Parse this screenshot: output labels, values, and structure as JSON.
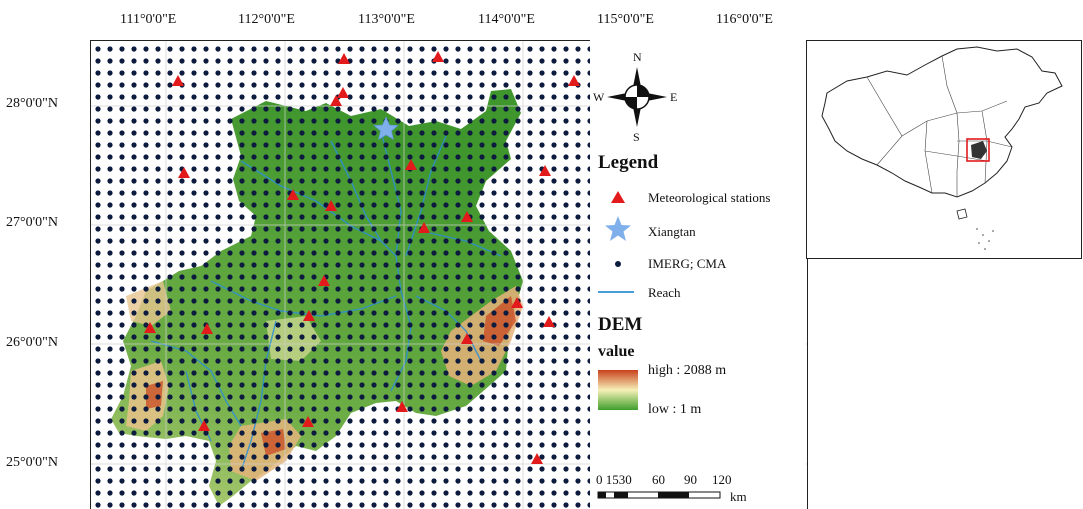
{
  "longitude_ticks": [
    "111°0'0\"E",
    "112°0'0\"E",
    "113°0'0\"E",
    "114°0'0\"E",
    "115°0'0\"E",
    "116°0'0\"E"
  ],
  "latitude_ticks": [
    "28°0'0\"N",
    "27°0'0\"N",
    "26°0'0\"N",
    "25°0'0\"N"
  ],
  "compass": {
    "n": "N",
    "s": "S",
    "e": "E",
    "w": "W"
  },
  "legend": {
    "title": "Legend",
    "items": [
      {
        "label": "Meteorological stations",
        "symbol": "red-triangle",
        "color": "#e31a1c"
      },
      {
        "label": "Xiangtan",
        "symbol": "blue-star",
        "color": "#7fb0ec"
      },
      {
        "label": "IMERG; CMA",
        "symbol": "navy-dot",
        "color": "#0d1b3e"
      },
      {
        "label": "Reach",
        "symbol": "blue-line",
        "color": "#2b8fd6"
      }
    ],
    "dem_title": "DEM",
    "dem_subtitle": "value",
    "dem_high": "high : 2088 m",
    "dem_low": "low : 1 m",
    "dem_colors": {
      "high": "#c8411d",
      "mid": "#f6f0b8",
      "low": "#3f9f2b"
    }
  },
  "scale_bar": {
    "labels": [
      "0 1530",
      "60",
      "90",
      "120"
    ],
    "unit": "km"
  },
  "colors": {
    "grid_dot": "#0d1b3e",
    "terrain": "#57a83a",
    "river": "#2b8fd6",
    "station": "#e31a1c",
    "xiangtan": "#7fb0ec"
  }
}
